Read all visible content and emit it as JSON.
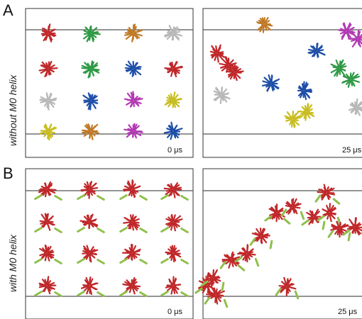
{
  "panels": [
    {
      "letter": "A",
      "row_label": "without M0 helix"
    },
    {
      "letter": "B",
      "row_label": "with M0 helix"
    }
  ],
  "time_labels": {
    "start": "0 μs",
    "end": "25 μs"
  },
  "colors": {
    "red": "#c0282a",
    "green": "#2f9a45",
    "orange": "#c07a28",
    "gray": "#b8b8b8",
    "blue": "#1e4fa8",
    "magenta": "#b23bb3",
    "yellow": "#c8bd20",
    "helix_green": "#8fbf4a",
    "frame": "#333333",
    "membrane_line": "#555555"
  },
  "grid_colors_A": [
    [
      "red",
      "green",
      "orange",
      "gray"
    ],
    [
      "red",
      "green",
      "blue",
      "red"
    ],
    [
      "gray",
      "blue",
      "magenta",
      "yellow"
    ],
    [
      "yellow",
      "orange",
      "magenta",
      "blue"
    ]
  ]
}
